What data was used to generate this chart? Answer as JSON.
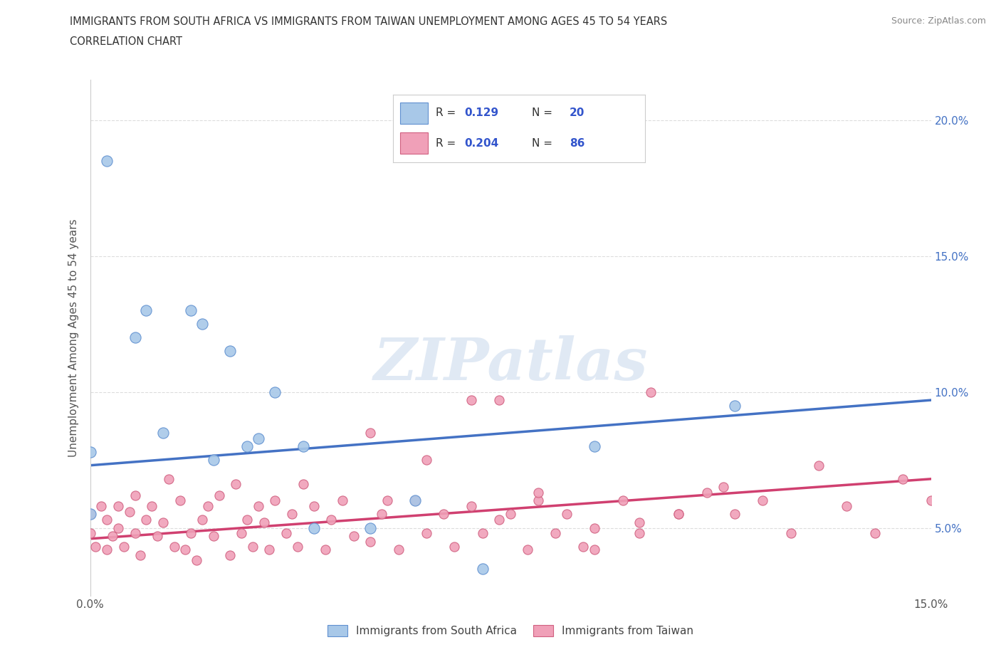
{
  "title_line1": "IMMIGRANTS FROM SOUTH AFRICA VS IMMIGRANTS FROM TAIWAN UNEMPLOYMENT AMONG AGES 45 TO 54 YEARS",
  "title_line2": "CORRELATION CHART",
  "source_text": "Source: ZipAtlas.com",
  "ylabel": "Unemployment Among Ages 45 to 54 years",
  "xlim": [
    0.0,
    0.15
  ],
  "ylim": [
    0.025,
    0.215
  ],
  "color_sa": "#a8c8e8",
  "color_tw": "#f0a0b8",
  "edge_sa": "#6090d0",
  "edge_tw": "#d06080",
  "trendline_sa_color": "#4472c4",
  "trendline_tw_color": "#d04070",
  "sa_trend_x": [
    0.0,
    0.15
  ],
  "sa_trend_y": [
    0.073,
    0.097
  ],
  "tw_trend_x": [
    0.0,
    0.15
  ],
  "tw_trend_y": [
    0.046,
    0.068
  ],
  "background_color": "#ffffff",
  "grid_color": "#dddddd",
  "watermark": "ZIPatlas",
  "sa_x": [
    0.003,
    0.008,
    0.01,
    0.013,
    0.018,
    0.02,
    0.022,
    0.025,
    0.028,
    0.03,
    0.033,
    0.038,
    0.04,
    0.05,
    0.058,
    0.07,
    0.09,
    0.115,
    0.0,
    0.0
  ],
  "sa_y": [
    0.185,
    0.12,
    0.13,
    0.085,
    0.13,
    0.125,
    0.075,
    0.115,
    0.08,
    0.083,
    0.1,
    0.08,
    0.05,
    0.05,
    0.06,
    0.035,
    0.08,
    0.095,
    0.078,
    0.055
  ],
  "tw_x": [
    0.0,
    0.0,
    0.001,
    0.002,
    0.003,
    0.003,
    0.004,
    0.005,
    0.005,
    0.006,
    0.007,
    0.008,
    0.008,
    0.009,
    0.01,
    0.011,
    0.012,
    0.013,
    0.014,
    0.015,
    0.016,
    0.017,
    0.018,
    0.019,
    0.02,
    0.021,
    0.022,
    0.023,
    0.025,
    0.026,
    0.027,
    0.028,
    0.029,
    0.03,
    0.031,
    0.032,
    0.033,
    0.035,
    0.036,
    0.037,
    0.038,
    0.04,
    0.042,
    0.043,
    0.045,
    0.047,
    0.05,
    0.052,
    0.055,
    0.058,
    0.06,
    0.063,
    0.065,
    0.068,
    0.07,
    0.073,
    0.075,
    0.078,
    0.08,
    0.083,
    0.085,
    0.088,
    0.09,
    0.095,
    0.098,
    0.1,
    0.105,
    0.11,
    0.115,
    0.12,
    0.125,
    0.13,
    0.135,
    0.14,
    0.145,
    0.15,
    0.05,
    0.053,
    0.06,
    0.068,
    0.073,
    0.08,
    0.09,
    0.098,
    0.105,
    0.113
  ],
  "tw_y": [
    0.055,
    0.048,
    0.043,
    0.058,
    0.042,
    0.053,
    0.047,
    0.05,
    0.058,
    0.043,
    0.056,
    0.048,
    0.062,
    0.04,
    0.053,
    0.058,
    0.047,
    0.052,
    0.068,
    0.043,
    0.06,
    0.042,
    0.048,
    0.038,
    0.053,
    0.058,
    0.047,
    0.062,
    0.04,
    0.066,
    0.048,
    0.053,
    0.043,
    0.058,
    0.052,
    0.042,
    0.06,
    0.048,
    0.055,
    0.043,
    0.066,
    0.058,
    0.042,
    0.053,
    0.06,
    0.047,
    0.045,
    0.055,
    0.042,
    0.06,
    0.048,
    0.055,
    0.043,
    0.058,
    0.048,
    0.053,
    0.055,
    0.042,
    0.06,
    0.048,
    0.055,
    0.043,
    0.05,
    0.06,
    0.048,
    0.1,
    0.055,
    0.063,
    0.055,
    0.06,
    0.048,
    0.073,
    0.058,
    0.048,
    0.068,
    0.06,
    0.085,
    0.06,
    0.075,
    0.097,
    0.097,
    0.063,
    0.042,
    0.052,
    0.055,
    0.065
  ]
}
